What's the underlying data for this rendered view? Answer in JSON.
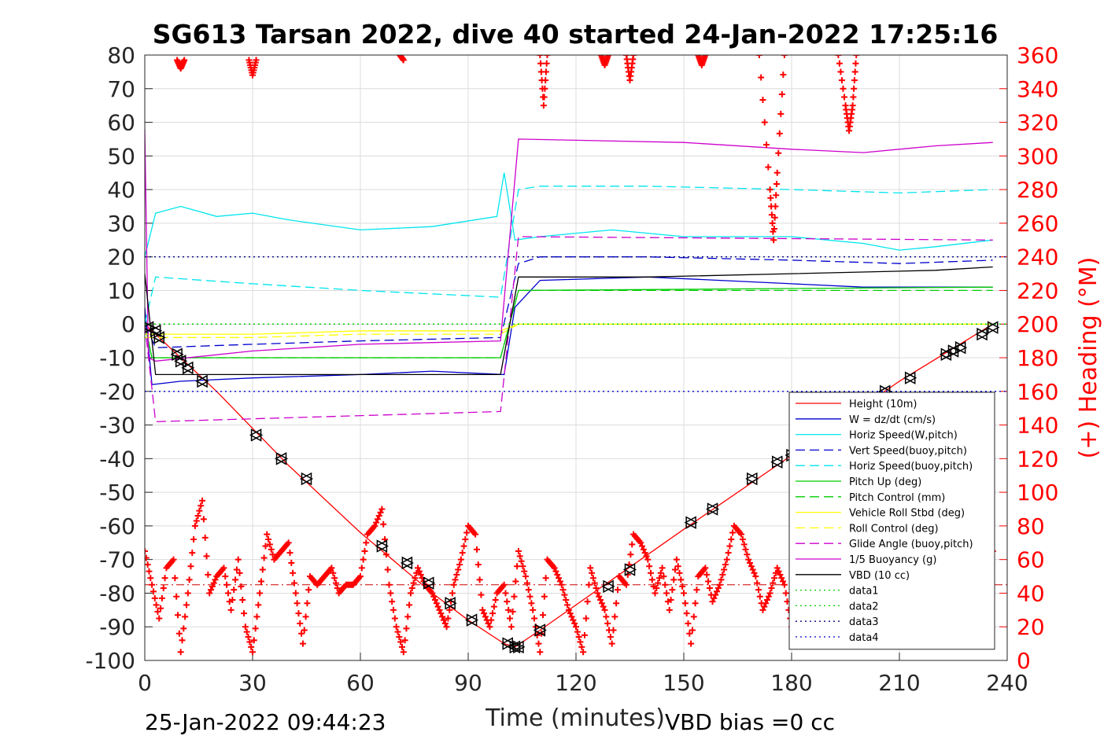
{
  "title": "SG613 Tarsan 2022, dive 40 started 24-Jan-2022 17:25:16",
  "footer": {
    "timestamp": "25-Jan-2022 09:44:23",
    "vbd_bias": "VBD bias =0 cc"
  },
  "chart_data": {
    "type": "line",
    "xlabel": "Time (minutes)",
    "ylabel_right": "(+) Heading (°M)",
    "xlim": [
      0,
      240
    ],
    "ylim": [
      -100,
      80
    ],
    "ylim_right": [
      0,
      360
    ],
    "xticks": [
      "0",
      "30",
      "60",
      "90",
      "120",
      "150",
      "180",
      "210",
      "240"
    ],
    "yticks_left": [
      "80",
      "70",
      "60",
      "50",
      "40",
      "30",
      "20",
      "10",
      "0",
      "-10",
      "-20",
      "-30",
      "-40",
      "-50",
      "-60",
      "-70",
      "-80",
      "-90",
      "-100"
    ],
    "yticks_right": [
      "360",
      "340",
      "320",
      "300",
      "280",
      "260",
      "240",
      "220",
      "200",
      "180",
      "160",
      "140",
      "120",
      "100",
      "80",
      "60",
      "40",
      "20",
      "0"
    ],
    "grid": true,
    "legend_position": "bottom-right",
    "series": [
      {
        "name": "Height (10m)",
        "color": "#ff0000",
        "style": "solid",
        "x": [
          0,
          20,
          40,
          60,
          80,
          90,
          100,
          103,
          110,
          130,
          150,
          180,
          210,
          236
        ],
        "y": [
          0,
          -20,
          -42,
          -62,
          -80,
          -88,
          -95,
          -96,
          -91,
          -76,
          -61,
          -39,
          -17,
          0
        ]
      },
      {
        "name": "W = dz/dt (cm/s)",
        "color": "#0000cc",
        "style": "solid",
        "x": [
          0,
          2,
          10,
          30,
          60,
          80,
          100,
          103,
          110,
          140,
          180,
          200,
          236
        ],
        "y": [
          5,
          -18,
          -17,
          -16,
          -15,
          -14,
          -15,
          5,
          13,
          14,
          12,
          11,
          11
        ]
      },
      {
        "name": "Horiz Speed(W,pitch)",
        "color": "#00e5ee",
        "style": "solid",
        "x": [
          0,
          3,
          10,
          20,
          30,
          40,
          60,
          80,
          98,
          100,
          103,
          110,
          130,
          150,
          180,
          200,
          210,
          220,
          236
        ],
        "y": [
          20,
          33,
          35,
          32,
          33,
          31,
          28,
          29,
          32,
          45,
          25,
          26,
          28,
          26,
          26,
          24,
          22,
          23,
          25
        ]
      },
      {
        "name": "Vert Speed(buoy,pitch)",
        "color": "#0000cc",
        "style": "dash",
        "x": [
          0,
          3,
          30,
          60,
          99,
          104,
          110,
          140,
          180,
          210,
          236
        ],
        "y": [
          0,
          -7,
          -6,
          -5,
          -4,
          18,
          20,
          20,
          19,
          18,
          19
        ]
      },
      {
        "name": "Horiz Speed(buoy,pitch)",
        "color": "#00e5ee",
        "style": "dash",
        "x": [
          0,
          3,
          30,
          60,
          99,
          104,
          110,
          140,
          180,
          210,
          236
        ],
        "y": [
          0,
          14,
          12,
          10,
          8,
          40,
          41,
          41,
          40,
          39,
          40
        ]
      },
      {
        "name": "Pitch Up (deg)",
        "color": "#00cc00",
        "style": "solid",
        "x": [
          0,
          2,
          99,
          104,
          236
        ],
        "y": [
          0,
          -10,
          -10,
          10,
          11
        ]
      },
      {
        "name": "Pitch Control (mm)",
        "color": "#00cc00",
        "style": "dash",
        "x": [
          0,
          2,
          99,
          104,
          236
        ],
        "y": [
          0,
          -10,
          -10,
          10,
          10
        ]
      },
      {
        "name": "Vehicle Roll Stbd (deg)",
        "color": "#ffff00",
        "style": "solid",
        "x": [
          0,
          30,
          60,
          99,
          104,
          150,
          236
        ],
        "y": [
          -3,
          -3,
          -2,
          -2,
          0,
          0,
          0
        ]
      },
      {
        "name": "Roll Control (deg)",
        "color": "#ffff00",
        "style": "dash",
        "x": [
          0,
          30,
          60,
          99,
          104,
          150,
          236
        ],
        "y": [
          -4,
          -4,
          -3,
          -3,
          0,
          0,
          0
        ]
      },
      {
        "name": "Glide Angle (buoy,pitch)",
        "color": "#cc00cc",
        "style": "dash",
        "x": [
          0,
          3,
          99,
          104,
          236
        ],
        "y": [
          0,
          -29,
          -26,
          26,
          25
        ]
      },
      {
        "name": "1/5 Buoyancy (g)",
        "color": "#cc00cc",
        "style": "solid",
        "x": [
          0,
          1,
          3,
          30,
          60,
          99,
          104,
          150,
          180,
          200,
          220,
          236
        ],
        "y": [
          58,
          -10,
          -11,
          -8,
          -6,
          -5,
          55,
          54,
          52,
          51,
          53,
          54
        ]
      },
      {
        "name": "VBD (10 cc)",
        "color": "#000000",
        "style": "solid",
        "x": [
          0,
          3,
          99,
          104,
          140,
          180,
          220,
          236
        ],
        "y": [
          15,
          -15,
          -15,
          14,
          14,
          15,
          16,
          17
        ]
      },
      {
        "name": "data1",
        "color": "#00cc00",
        "style": "dot",
        "x": [
          0,
          240
        ],
        "y": [
          0,
          0
        ]
      },
      {
        "name": "data2",
        "color": "#00cc00",
        "style": "dot",
        "x": [
          0,
          240
        ],
        "y": [
          0,
          0
        ]
      },
      {
        "name": "data3",
        "color": "#000080",
        "style": "dot",
        "x": [
          0,
          240
        ],
        "y": [
          20,
          20
        ]
      },
      {
        "name": "data4",
        "color": "#0000cc",
        "style": "dot",
        "x": [
          0,
          240
        ],
        "y": [
          -20,
          -20
        ]
      }
    ],
    "heading": {
      "axis": "right",
      "color": "#ff0000",
      "marker": "+",
      "x": [
        0,
        2,
        4,
        6,
        8,
        10,
        12,
        14,
        16,
        18,
        20,
        22,
        24,
        26,
        28,
        30,
        32,
        34,
        36,
        38,
        40,
        42,
        44,
        46,
        48,
        50,
        52,
        54,
        56,
        58,
        60,
        62,
        64,
        66,
        68,
        70,
        72,
        74,
        76,
        78,
        80,
        82,
        84,
        86,
        88,
        90,
        92,
        94,
        96,
        98,
        100,
        102,
        104,
        106,
        108,
        110,
        112,
        114,
        116,
        118,
        120,
        122,
        124,
        126,
        128,
        130,
        132,
        134,
        136,
        138,
        140,
        142,
        144,
        146,
        148,
        150,
        152,
        154,
        156,
        158,
        160,
        162,
        164,
        166,
        168,
        170,
        172,
        174,
        176,
        178,
        180,
        182,
        184,
        186,
        188,
        190,
        192,
        194,
        196,
        198,
        200,
        202,
        204,
        206,
        208,
        210,
        212,
        214,
        216,
        218,
        220,
        222,
        224,
        226,
        228,
        230,
        232,
        234,
        236
      ],
      "y": [
        65,
        45,
        25,
        55,
        60,
        5,
        40,
        80,
        95,
        40,
        50,
        55,
        30,
        60,
        20,
        5,
        40,
        75,
        60,
        65,
        70,
        40,
        10,
        50,
        45,
        50,
        55,
        40,
        45,
        45,
        50,
        75,
        80,
        90,
        45,
        20,
        5,
        40,
        55,
        45,
        40,
        30,
        20,
        45,
        60,
        80,
        75,
        30,
        20,
        40,
        45,
        20,
        65,
        50,
        30,
        5,
        60,
        55,
        45,
        30,
        20,
        5,
        55,
        40,
        30,
        10,
        50,
        45,
        75,
        70,
        60,
        40,
        55,
        30,
        60,
        40,
        10,
        50,
        55,
        35,
        45,
        60,
        80,
        75,
        60,
        50,
        30,
        40,
        55,
        45,
        20,
        60,
        55,
        40,
        30,
        25,
        10,
        40,
        55,
        50,
        65,
        70,
        45,
        30,
        55,
        45,
        40,
        20,
        55,
        60,
        30,
        45,
        70,
        50,
        55,
        40,
        60,
        45,
        65
      ],
      "wraps": [
        {
          "x": [
            9,
            10,
            11
          ],
          "y": [
            357,
            352,
            357
          ]
        },
        {
          "x": [
            29,
            30,
            31
          ],
          "y": [
            357,
            348,
            357
          ]
        },
        {
          "x": [
            71,
            72
          ],
          "y": [
            360,
            357
          ]
        },
        {
          "x": [
            110,
            111,
            112
          ],
          "y": [
            360,
            330,
            360
          ]
        },
        {
          "x": [
            127,
            128,
            129
          ],
          "y": [
            360,
            354,
            360
          ]
        },
        {
          "x": [
            134,
            135,
            136
          ],
          "y": [
            360,
            345,
            360
          ]
        },
        {
          "x": [
            154,
            155,
            156
          ],
          "y": [
            360,
            354,
            360
          ]
        },
        {
          "x": [
            171,
            174,
            175,
            176,
            178
          ],
          "y": [
            360,
            280,
            250,
            290,
            360
          ]
        },
        {
          "x": [
            193,
            195,
            196,
            197,
            198
          ],
          "y": [
            360,
            330,
            315,
            330,
            360
          ]
        }
      ]
    },
    "triangle_markers": {
      "x": [
        1,
        3,
        4,
        9,
        10,
        12,
        16,
        31,
        38,
        45,
        66,
        73,
        79,
        85,
        91,
        101,
        103,
        104,
        110,
        129,
        135,
        152,
        158,
        169,
        176,
        180,
        206,
        213,
        223,
        225,
        227,
        233,
        236
      ],
      "y": [
        -1,
        -2,
        -4,
        -9,
        -11,
        -13,
        -17,
        -33,
        -40,
        -46,
        -66,
        -71,
        -77,
        -83,
        -88,
        -95,
        -96,
        -96,
        -91,
        -78,
        -73,
        -59,
        -55,
        -46,
        -41,
        -39,
        -20,
        -16,
        -9,
        -8,
        -7,
        -3,
        -1
      ]
    },
    "heading_reference": {
      "y": 45,
      "color": "#cc0000",
      "style": "dashdot"
    }
  }
}
